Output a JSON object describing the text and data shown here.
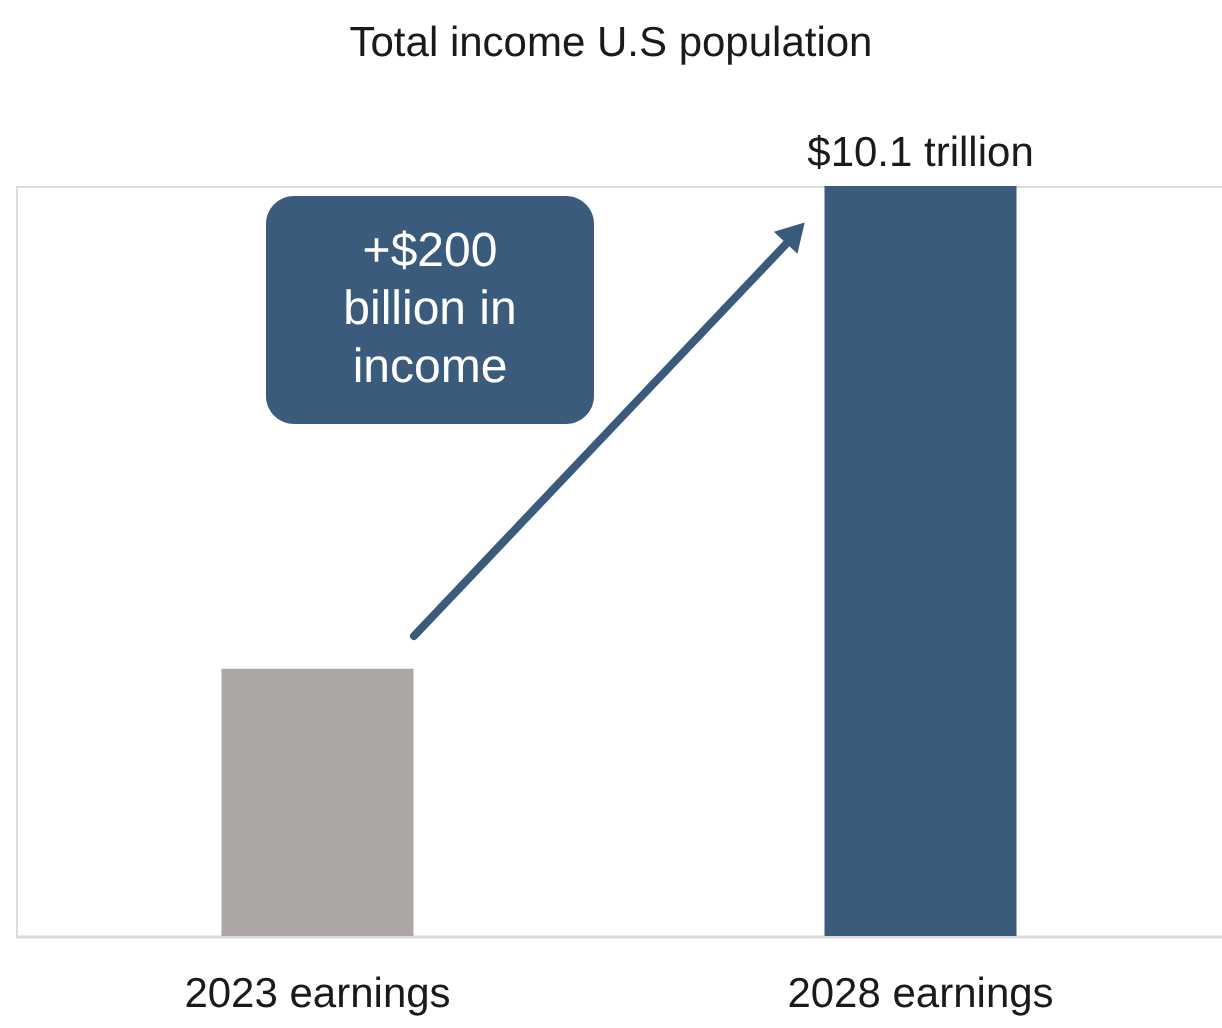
{
  "chart_data": {
    "type": "bar",
    "title": "Total income U.S population",
    "categories": [
      "2023 earnings",
      "2028 earnings"
    ],
    "values": [
      3.6,
      10.1
    ],
    "colors": [
      "#aca7a5",
      "#3b5b7d"
    ],
    "value_labels": [
      null,
      "$10.1 trillion"
    ],
    "annotations": [
      "+$200 billion in income"
    ]
  }
}
